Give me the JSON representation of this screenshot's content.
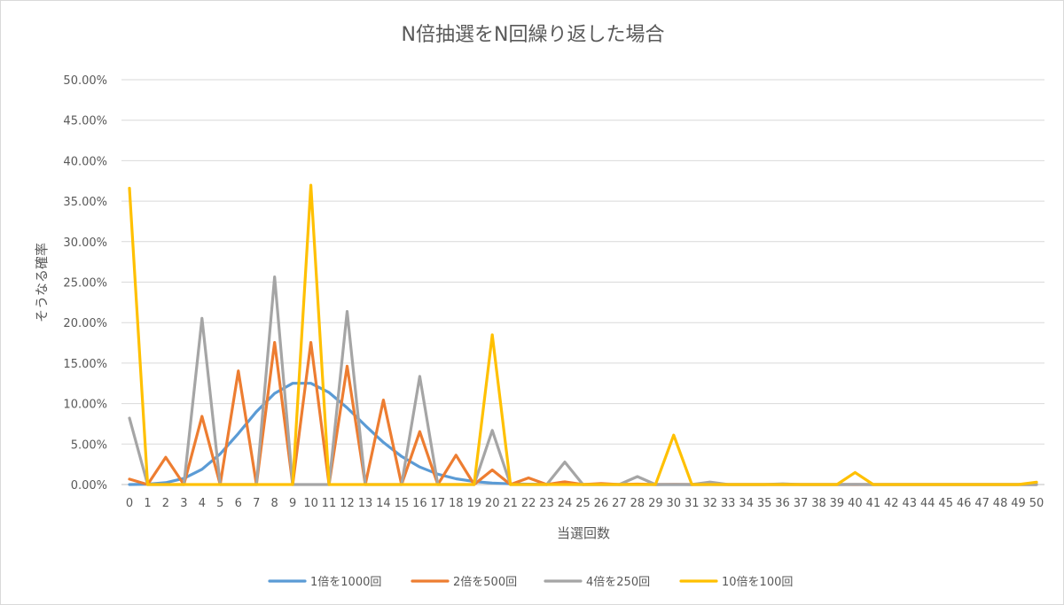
{
  "chart_data": {
    "type": "line",
    "title": "N倍抽選をN回繰り返した場合",
    "xlabel": "当選回数",
    "ylabel": "そうなる確率",
    "ylim": [
      0,
      0.5
    ],
    "y_ticks": [
      "0.00%",
      "5.00%",
      "10.00%",
      "15.00%",
      "20.00%",
      "25.00%",
      "30.00%",
      "35.00%",
      "40.00%",
      "45.00%",
      "50.00%"
    ],
    "x": [
      0,
      1,
      2,
      3,
      4,
      5,
      6,
      7,
      8,
      9,
      10,
      11,
      12,
      13,
      14,
      15,
      16,
      17,
      18,
      19,
      20,
      21,
      22,
      23,
      24,
      25,
      26,
      27,
      28,
      29,
      30,
      31,
      32,
      33,
      34,
      35,
      36,
      37,
      38,
      39,
      40,
      41,
      42,
      43,
      44,
      45,
      46,
      47,
      48,
      49,
      50
    ],
    "grid": "horizontal",
    "legend_position": "bottom",
    "series": [
      {
        "name": "1倍を1000回",
        "color": "#5B9BD5",
        "values": [
          0.0,
          0.0004,
          0.0023,
          0.0075,
          0.0188,
          0.0378,
          0.063,
          0.09,
          0.1126,
          0.1251,
          0.1251,
          0.1137,
          0.0948,
          0.0729,
          0.0521,
          0.0347,
          0.0217,
          0.0128,
          0.0071,
          0.0037,
          0.0019,
          0.0009,
          0.0004,
          0.0002,
          0.0001,
          0,
          0,
          0,
          0,
          0,
          0,
          0,
          0,
          0,
          0,
          0,
          0,
          0,
          0,
          0,
          0,
          0,
          0,
          0,
          0,
          0,
          0,
          0,
          0,
          0,
          0
        ]
      },
      {
        "name": "2倍を500回",
        "color": "#ED7D31",
        "values": [
          0.0067,
          0,
          0.0337,
          0,
          0.0842,
          0,
          0.1404,
          0,
          0.1755,
          0,
          0.1755,
          0,
          0.1462,
          0,
          0.1044,
          0,
          0.0653,
          0,
          0.0363,
          0,
          0.0181,
          0,
          0.0082,
          0,
          0.0034,
          0,
          0.0013,
          0,
          0.0005,
          0,
          0.0002,
          0,
          0.0001,
          0,
          0,
          0,
          0,
          0,
          0,
          0,
          0,
          0,
          0,
          0,
          0,
          0,
          0,
          0,
          0,
          0,
          0
        ]
      },
      {
        "name": "4倍を250回",
        "color": "#A5A5A5",
        "values": [
          0.0821,
          0,
          0,
          0,
          0.2052,
          0,
          0,
          0,
          0.2565,
          0,
          0,
          0,
          0.2138,
          0,
          0,
          0,
          0.1336,
          0,
          0,
          0,
          0.0668,
          0,
          0,
          0,
          0.0278,
          0,
          0,
          0,
          0.0099,
          0,
          0,
          0,
          0.0031,
          0,
          0,
          0,
          0.0009,
          0,
          0,
          0,
          0.0002,
          0,
          0,
          0,
          0,
          0,
          0,
          0,
          0,
          0,
          0
        ]
      },
      {
        "name": "10倍を100回",
        "color": "#FFC000",
        "values": [
          0.366,
          0,
          0,
          0,
          0,
          0,
          0,
          0,
          0,
          0,
          0.3697,
          0,
          0,
          0,
          0,
          0,
          0,
          0,
          0,
          0,
          0.1849,
          0,
          0,
          0,
          0,
          0,
          0,
          0,
          0,
          0,
          0.061,
          0,
          0,
          0,
          0,
          0,
          0,
          0,
          0,
          0,
          0.0149,
          0,
          0,
          0,
          0,
          0,
          0,
          0,
          0,
          0,
          0.0029
        ]
      }
    ]
  }
}
